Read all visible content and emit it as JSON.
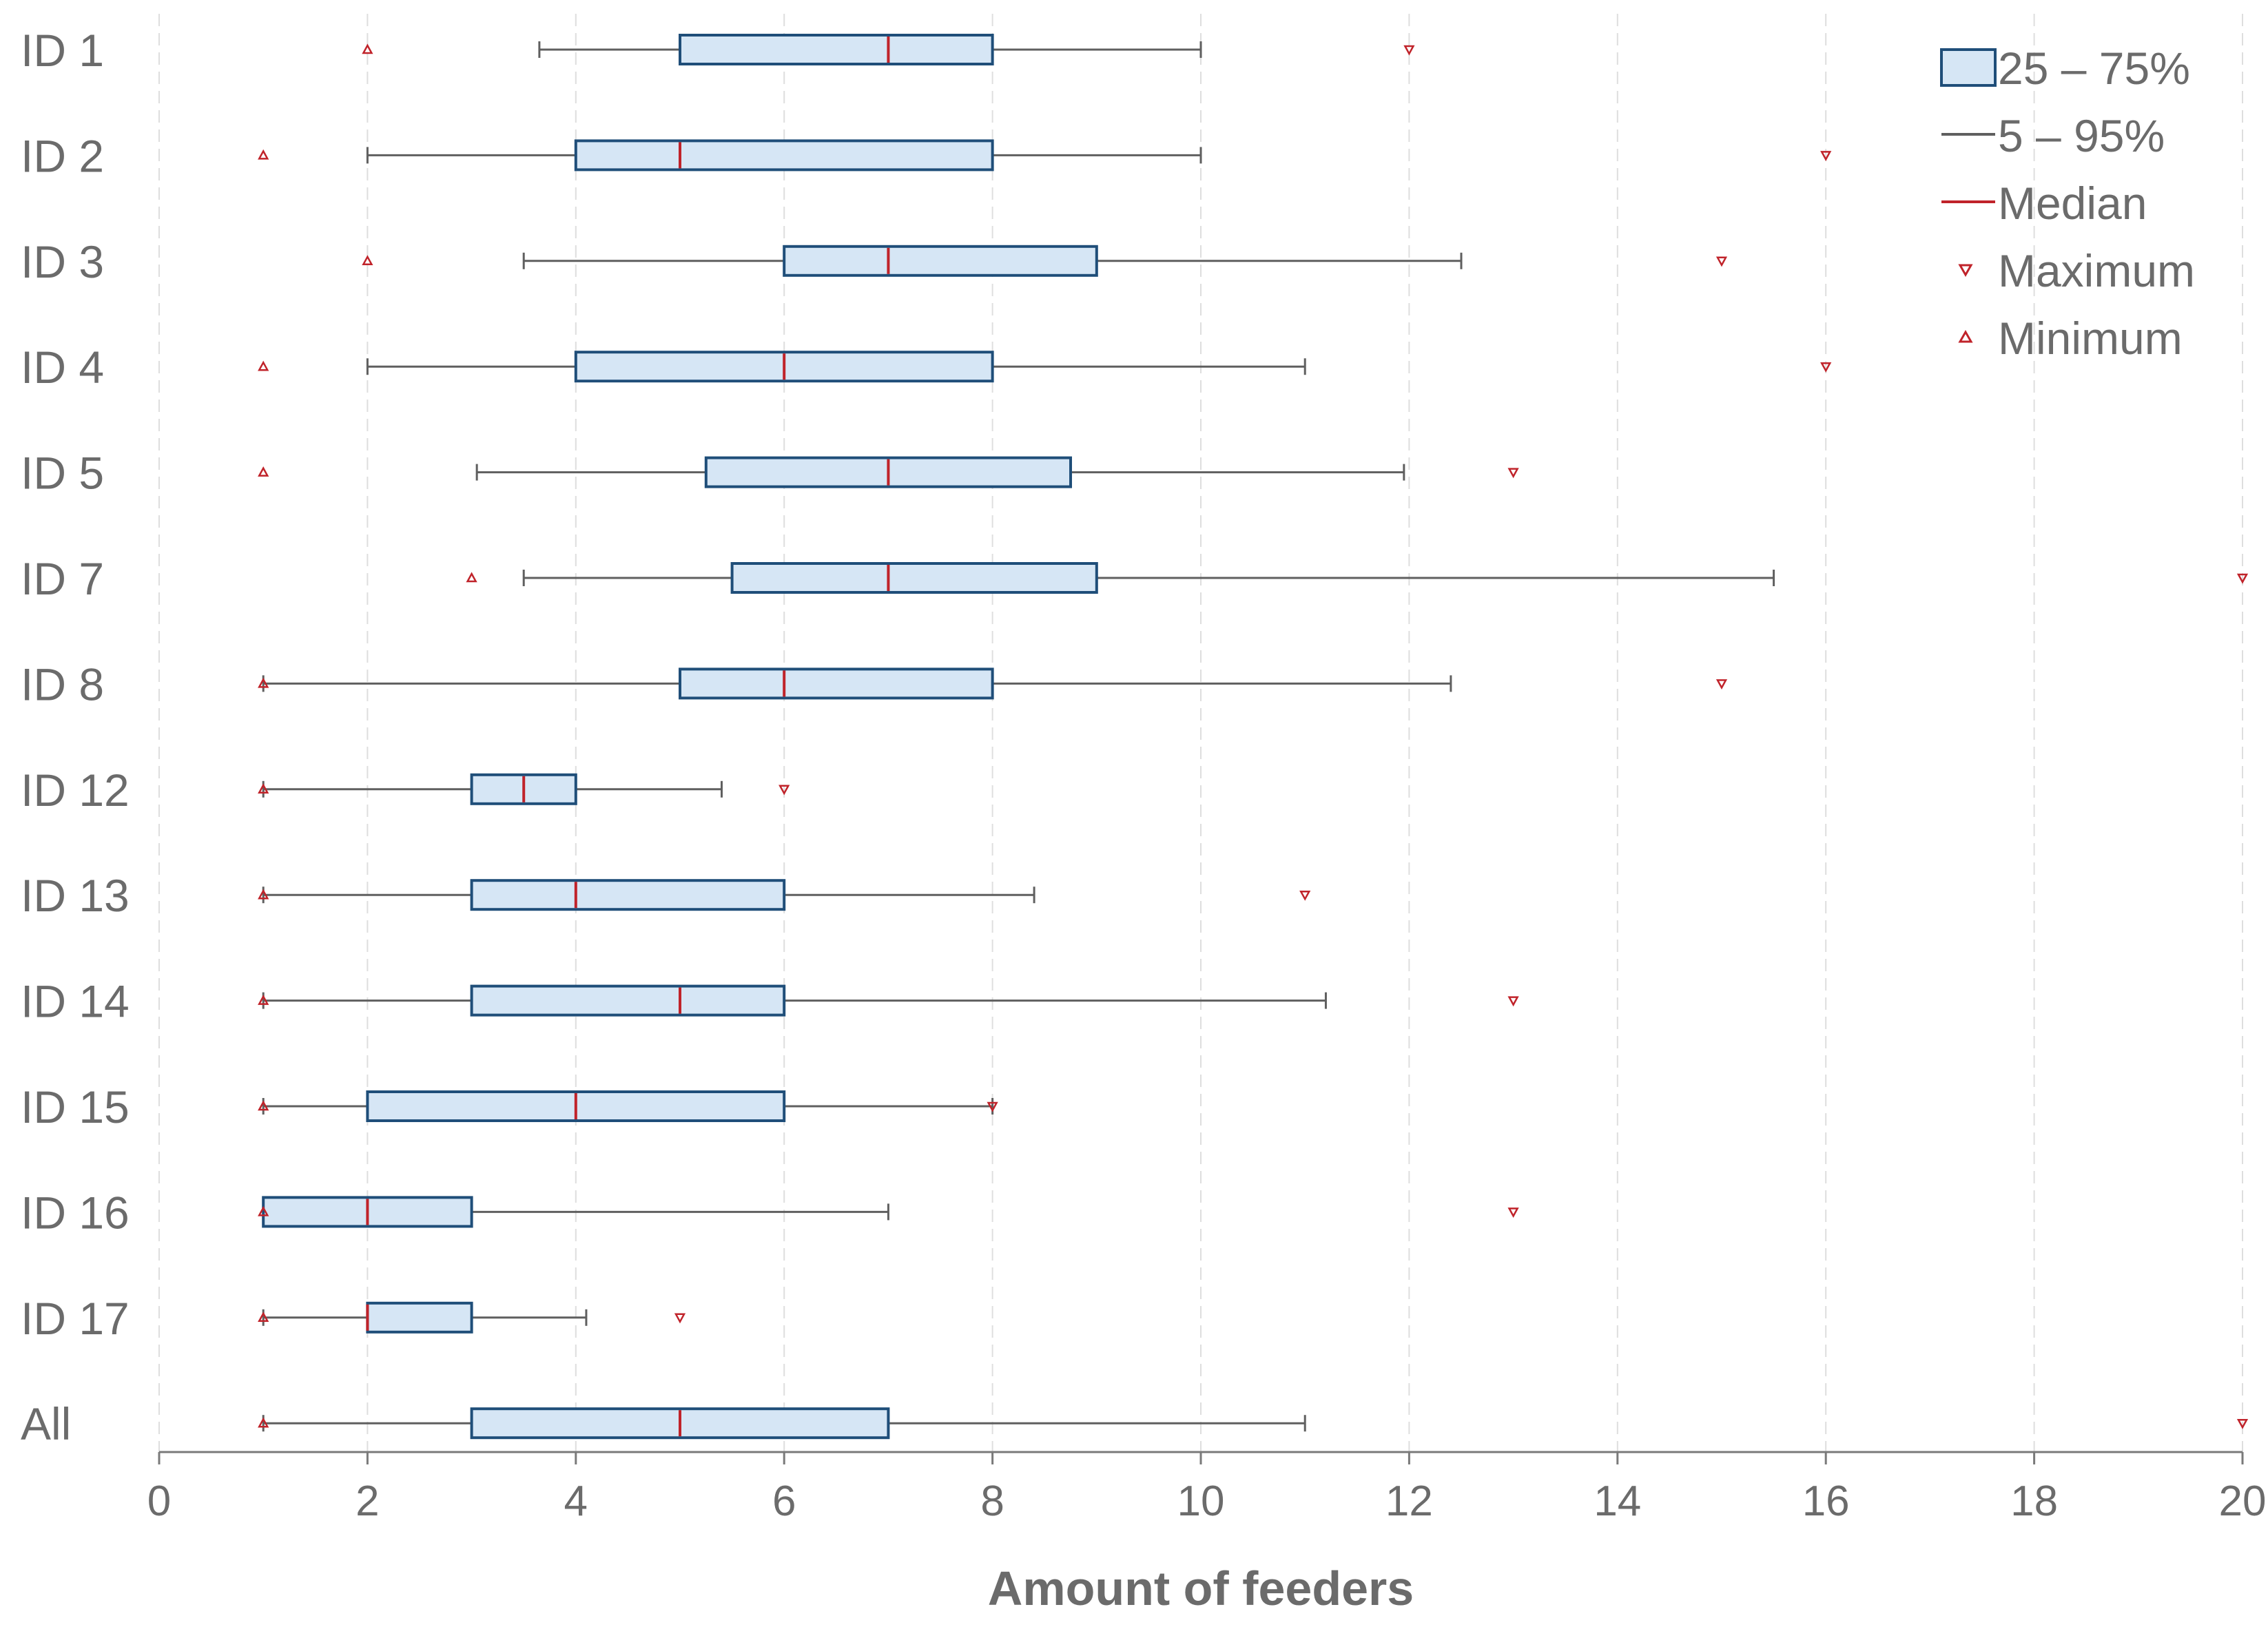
{
  "chart_data": {
    "type": "boxplot",
    "orientation": "horizontal",
    "title": "",
    "xlabel": "Amount of feeders",
    "ylabel": "",
    "xlim": [
      0,
      20
    ],
    "xticks": [
      0,
      2,
      4,
      6,
      8,
      10,
      12,
      14,
      16,
      18,
      20
    ],
    "grid": "vertical dashed",
    "legend_position": "top-right",
    "legend": {
      "box": "25 – 75%",
      "whisker": "5 – 95%",
      "median": "Median",
      "maximum": "Maximum",
      "minimum": "Minimum"
    },
    "colors": {
      "box_fill": "#d6e6f5",
      "box_stroke": "#1f4e79",
      "whisker": "#5f5f5f",
      "median": "#c0232a",
      "markers": "#c0232a",
      "text": "#6b6b6b",
      "grid": "#dedede"
    },
    "categories": [
      "ID 1",
      "ID 2",
      "ID 3",
      "ID 4",
      "ID 5",
      "ID 7",
      "ID 8",
      "ID 12",
      "ID 13",
      "ID 14",
      "ID 15",
      "ID 16",
      "ID 17",
      "All"
    ],
    "series": [
      {
        "category": "ID 1",
        "min": 2,
        "p5": 3.65,
        "q1": 5,
        "median": 7,
        "q3": 8,
        "p95": 10,
        "max": 12
      },
      {
        "category": "ID 2",
        "min": 1,
        "p5": 2,
        "q1": 4,
        "median": 5,
        "q3": 8,
        "p95": 10,
        "max": 16
      },
      {
        "category": "ID 3",
        "min": 2,
        "p5": 3.5,
        "q1": 6,
        "median": 7,
        "q3": 9,
        "p95": 12.5,
        "max": 15
      },
      {
        "category": "ID 4",
        "min": 1,
        "p5": 2,
        "q1": 4,
        "median": 6,
        "q3": 8,
        "p95": 11,
        "max": 16
      },
      {
        "category": "ID 5",
        "min": 1,
        "p5": 3.05,
        "q1": 5.25,
        "median": 7,
        "q3": 8.75,
        "p95": 11.95,
        "max": 13
      },
      {
        "category": "ID 7",
        "min": 3,
        "p5": 3.5,
        "q1": 5.5,
        "median": 7,
        "q3": 9,
        "p95": 15.5,
        "max": 20
      },
      {
        "category": "ID 8",
        "min": 1,
        "p5": 1,
        "q1": 5,
        "median": 6,
        "q3": 8,
        "p95": 12.4,
        "max": 15
      },
      {
        "category": "ID 12",
        "min": 1,
        "p5": 1,
        "q1": 3,
        "median": 3.5,
        "q3": 4,
        "p95": 5.4,
        "max": 6
      },
      {
        "category": "ID 13",
        "min": 1,
        "p5": 1,
        "q1": 3,
        "median": 4,
        "q3": 6,
        "p95": 8.4,
        "max": 11
      },
      {
        "category": "ID 14",
        "min": 1,
        "p5": 1,
        "q1": 3,
        "median": 5,
        "q3": 6,
        "p95": 11.2,
        "max": 13
      },
      {
        "category": "ID 15",
        "min": 1,
        "p5": 1,
        "q1": 2,
        "median": 4,
        "q3": 6,
        "p95": 8,
        "max": 8
      },
      {
        "category": "ID 16",
        "min": 1,
        "p5": 1,
        "q1": 1,
        "median": 2,
        "q3": 3,
        "p95": 7,
        "max": 13
      },
      {
        "category": "ID 17",
        "min": 1,
        "p5": 1,
        "q1": 2,
        "median": 2,
        "q3": 3,
        "p95": 4.1,
        "max": 5
      },
      {
        "category": "All",
        "min": 1,
        "p5": 1,
        "q1": 3,
        "median": 5,
        "q3": 7,
        "p95": 11,
        "max": 20
      }
    ]
  }
}
